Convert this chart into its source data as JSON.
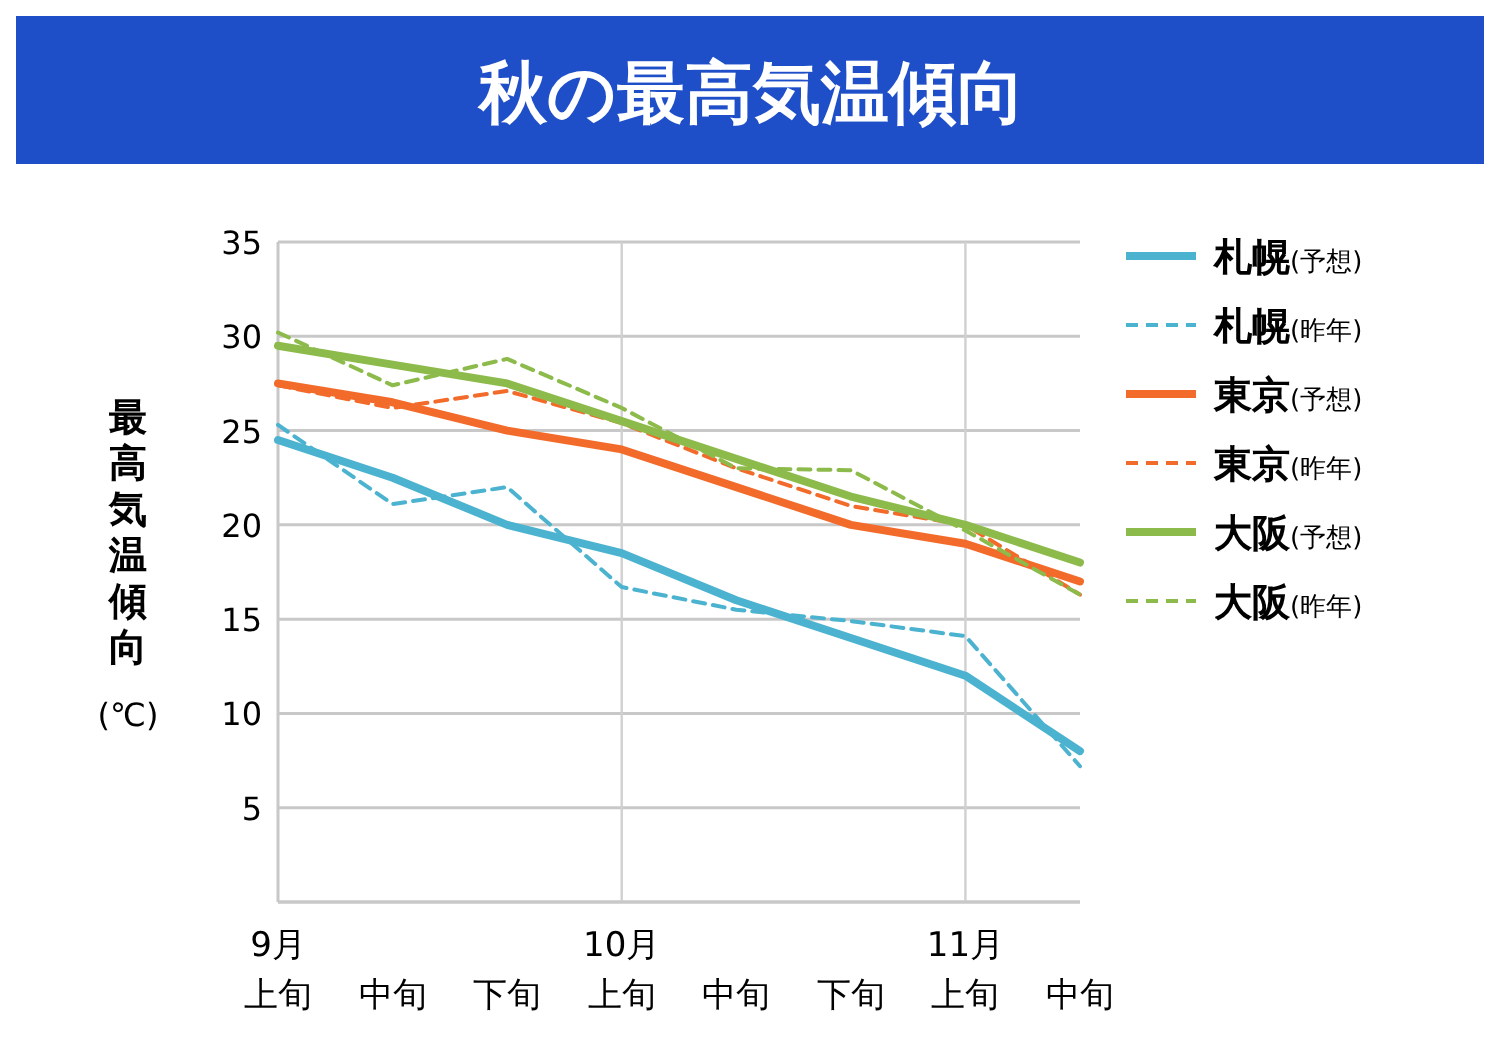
{
  "chart_data": {
    "type": "line",
    "title": "秋の最高気温傾向",
    "ylabel": "最高気温傾向(℃)",
    "categories": [
      "9月上旬",
      "中旬",
      "下旬",
      "10月上旬",
      "中旬",
      "下旬",
      "11月上旬",
      "中旬"
    ],
    "series": [
      {
        "name": "札幌(予想)",
        "color": "#4bb3d0",
        "line_style": "solid",
        "values": [
          24.5,
          22.5,
          20,
          18.5,
          16,
          14,
          12,
          8
        ]
      },
      {
        "name": "札幌(昨年)",
        "color": "#4bb3d0",
        "line_style": "dashed",
        "values": [
          25.3,
          21.1,
          22,
          16.7,
          15.5,
          14.9,
          14.1,
          7.2
        ]
      },
      {
        "name": "東京(予想)",
        "color": "#f26b2a",
        "line_style": "solid",
        "values": [
          27.5,
          26.5,
          25,
          24,
          22,
          20,
          19,
          17
        ]
      },
      {
        "name": "東京(昨年)",
        "color": "#f26b2a",
        "line_style": "dashed",
        "values": [
          27.4,
          26.2,
          27.1,
          25.4,
          23,
          21,
          20,
          16.3
        ]
      },
      {
        "name": "大阪(予想)",
        "color": "#8dbb4b",
        "line_style": "solid",
        "values": [
          29.5,
          28.5,
          27.5,
          25.5,
          23.5,
          21.5,
          20,
          18
        ]
      },
      {
        "name": "大阪(昨年)",
        "color": "#8dbb4b",
        "line_style": "dashed",
        "values": [
          30.2,
          27.4,
          28.8,
          26.2,
          23,
          22.9,
          19.7,
          16.3
        ]
      }
    ],
    "ylim": [
      0,
      35
    ],
    "yticks": [
      {
        "value": 0,
        "label": null
      },
      5,
      10,
      15,
      20,
      25,
      30,
      35
    ],
    "grid": true,
    "legend": "right",
    "marker": "none"
  }
}
